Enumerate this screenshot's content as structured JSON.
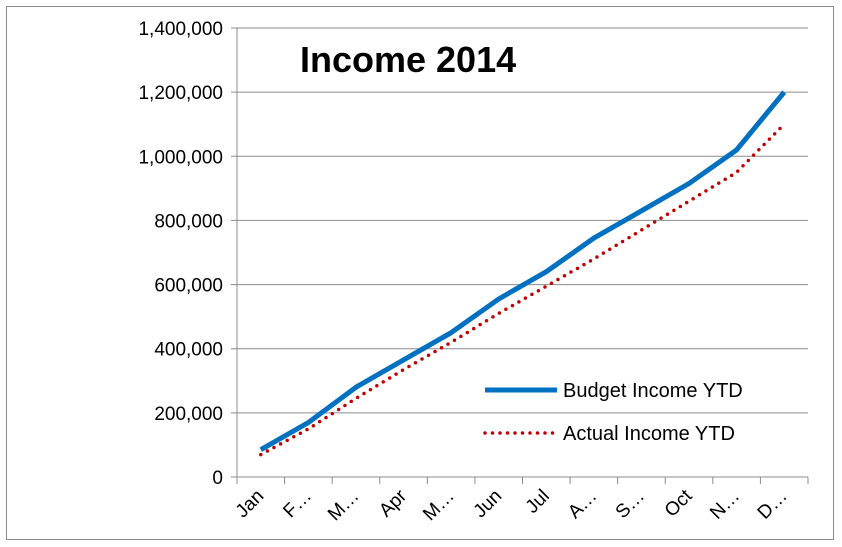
{
  "chart_data": {
    "type": "line",
    "title": "Income 2014",
    "xlabel": "",
    "ylabel": "",
    "categories": [
      "Jan",
      "F…",
      "M…",
      "Apr",
      "M…",
      "Jun",
      "Jul",
      "A…",
      "S…",
      "Oct",
      "N…",
      "D…"
    ],
    "ylim": [
      0,
      1400000
    ],
    "yticks": [
      "0",
      "200,000",
      "400,000",
      "600,000",
      "800,000",
      "1,000,000",
      "1,200,000",
      "1,400,000"
    ],
    "grid": "horizontal",
    "legend_position": "bottom-right",
    "series": [
      {
        "name": "Budget Income YTD",
        "style": "solid",
        "color": "#0070c0",
        "values": [
          85000,
          170000,
          280000,
          365000,
          450000,
          555000,
          640000,
          745000,
          830000,
          915000,
          1020000,
          1200000
        ]
      },
      {
        "name": "Actual Income YTD",
        "style": "dotted",
        "color": "#c00000",
        "values": [
          70000,
          150000,
          245000,
          335000,
          420000,
          510000,
          595000,
          680000,
          770000,
          860000,
          950000,
          1100000
        ]
      }
    ]
  }
}
